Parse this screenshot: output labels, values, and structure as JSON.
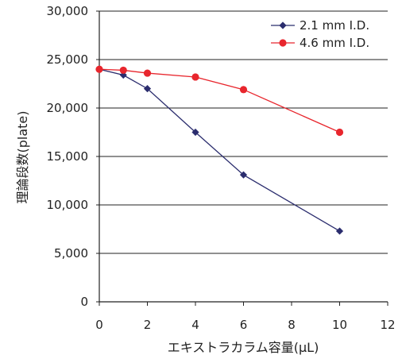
{
  "chart_data": {
    "type": "line",
    "xlabel": "エキストラカラム容量(μL)",
    "ylabel": "理論段数(plate)",
    "xlim": [
      0,
      12
    ],
    "ylim": [
      0,
      30000
    ],
    "x_ticks": [
      "0",
      "2",
      "4",
      "6",
      "8",
      "10",
      "12"
    ],
    "y_ticks": [
      "0",
      "5,000",
      "10,000",
      "15,000",
      "20,000",
      "25,000",
      "30,000"
    ],
    "grid": "horizontal",
    "legend_position": "top-right",
    "series": [
      {
        "name": "2.1 mm I.D.",
        "color": "#2b2d6e",
        "marker": "diamond",
        "x": [
          0,
          1,
          2,
          4,
          6,
          10
        ],
        "y": [
          24000,
          23400,
          22000,
          17500,
          13100,
          7300
        ]
      },
      {
        "name": "4.6 mm I.D.",
        "color": "#e8262d",
        "marker": "circle",
        "x": [
          0,
          1,
          2,
          4,
          6,
          10
        ],
        "y": [
          24000,
          23900,
          23600,
          23200,
          21900,
          17500
        ]
      }
    ]
  }
}
